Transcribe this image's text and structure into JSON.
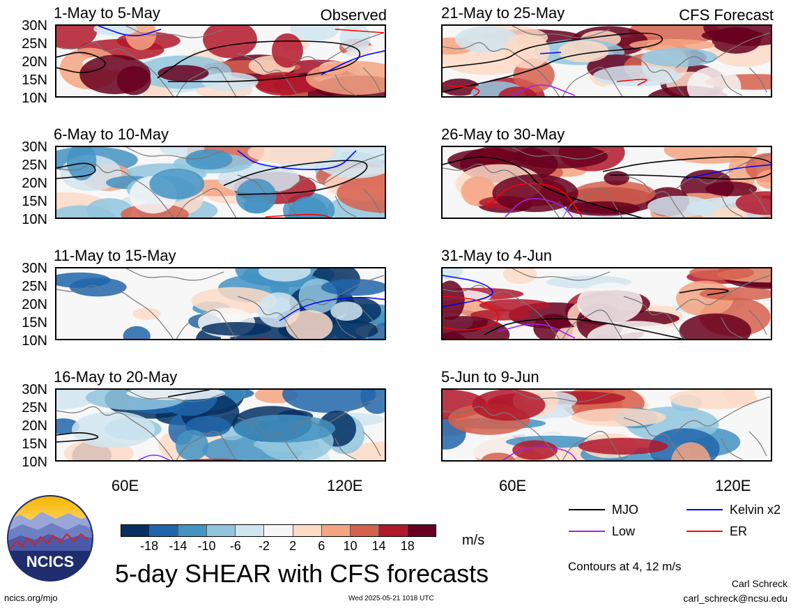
{
  "main_title": "5-day SHEAR with CFS forecasts",
  "units": "m/s",
  "observed_label": "Observed",
  "forecast_label": "CFS Forecast",
  "lat_ticks": [
    "30N",
    "25N",
    "20N",
    "15N",
    "10N"
  ],
  "lon_ticks": [
    "60E",
    "120E"
  ],
  "observed_panels": [
    {
      "label": "1-May to 5-May"
    },
    {
      "label": "6-May to 10-May"
    },
    {
      "label": "11-May to 15-May"
    },
    {
      "label": "16-May to 20-May"
    }
  ],
  "forecast_panels": [
    {
      "label": "21-May to 25-May"
    },
    {
      "label": "26-May to 30-May"
    },
    {
      "label": "31-May to 4-Jun"
    },
    {
      "label": "5-Jun to 9-Jun"
    }
  ],
  "colorbar": {
    "labels": [
      "-18",
      "-14",
      "-10",
      "-6",
      "-2",
      "2",
      "6",
      "10",
      "14",
      "18"
    ],
    "colors": [
      "#053061",
      "#2166ac",
      "#4393c3",
      "#92c5de",
      "#d1e5f0",
      "#f7f7f7",
      "#fddbc7",
      "#f4a582",
      "#d6604d",
      "#b2182b",
      "#67001f"
    ]
  },
  "legend": {
    "items": [
      {
        "label": "MJO",
        "color": "#000000"
      },
      {
        "label": "Kelvin x2",
        "color": "#0000ff"
      },
      {
        "label": "Low",
        "color": "#a020f0"
      },
      {
        "label": "ER",
        "color": "#ff0000"
      }
    ],
    "contours_note": "Contours at 4, 12 m/s"
  },
  "logo_text": "NCICS",
  "footer": {
    "site": "ncics.org/mjo",
    "timestamp": "Wed 2025-05-21 1018 UTC",
    "author": "Carl Schreck",
    "email": "carl_schreck@ncsu.edu"
  }
}
